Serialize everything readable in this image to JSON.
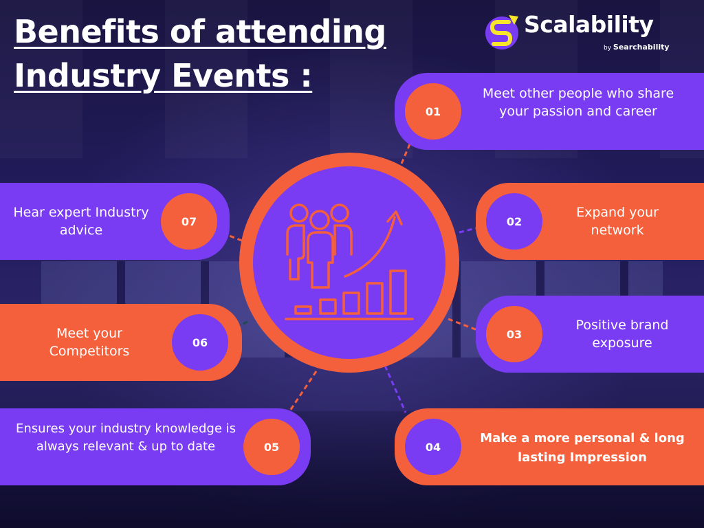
{
  "title": {
    "line1": "Benefits of attending",
    "line2": "Industry Events :"
  },
  "brand": {
    "name": "Scalability",
    "by": "by",
    "company": "Searchability"
  },
  "colors": {
    "purple": "#7a3cf2",
    "orange": "#f4603b",
    "navy": "#1c1650"
  },
  "center_icon": "team-growth-chart-icon",
  "benefits": [
    {
      "number": "01",
      "text": "Meet other people who share your passion and career"
    },
    {
      "number": "02",
      "text": "Expand your network"
    },
    {
      "number": "03",
      "text": "Positive brand exposure"
    },
    {
      "number": "04",
      "text": "Make a more personal & long lasting Impression"
    },
    {
      "number": "05",
      "text": "Ensures your industry knowledge is always relevant & up to date"
    },
    {
      "number": "06",
      "text": "Meet your Competitors"
    },
    {
      "number": "07",
      "text": "Hear expert Industry advice"
    }
  ]
}
